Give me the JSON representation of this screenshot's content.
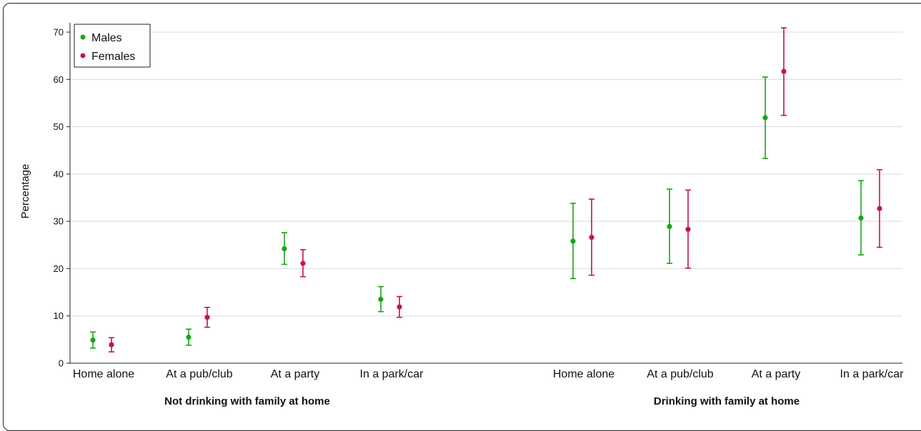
{
  "chart_data": {
    "type": "scatter",
    "ylabel": "Percentage",
    "ylim": [
      0,
      72
    ],
    "yticks": [
      0,
      10,
      20,
      30,
      40,
      50,
      60,
      70
    ],
    "grid": "horizontal",
    "legend_position": "top-left",
    "groups": [
      {
        "label": "Not drinking with family at home",
        "categories": [
          "Home alone",
          "At a pub/club",
          "At a party",
          "In a park/car"
        ]
      },
      {
        "label": "Drinking with family at home",
        "categories": [
          "Home alone",
          "At a pub/club",
          "At a party",
          "In a park/car"
        ]
      }
    ],
    "series": [
      {
        "name": "Males",
        "color": "#1aa31a",
        "values": [
          4.9,
          5.5,
          24.2,
          13.5,
          25.8,
          28.9,
          51.9,
          30.7
        ],
        "lower": [
          3.2,
          3.8,
          20.9,
          10.9,
          17.9,
          21.1,
          43.3,
          22.9
        ],
        "upper": [
          6.6,
          7.2,
          27.6,
          16.2,
          33.8,
          36.8,
          60.5,
          38.6
        ]
      },
      {
        "name": "Females",
        "color": "#c4144b",
        "values": [
          3.9,
          9.7,
          21.1,
          11.9,
          26.6,
          28.3,
          61.7,
          32.7
        ],
        "lower": [
          2.4,
          7.6,
          18.3,
          9.7,
          18.6,
          20.1,
          52.4,
          24.5
        ],
        "upper": [
          5.4,
          11.8,
          24.0,
          14.1,
          34.7,
          36.6,
          70.9,
          40.9
        ]
      }
    ]
  }
}
